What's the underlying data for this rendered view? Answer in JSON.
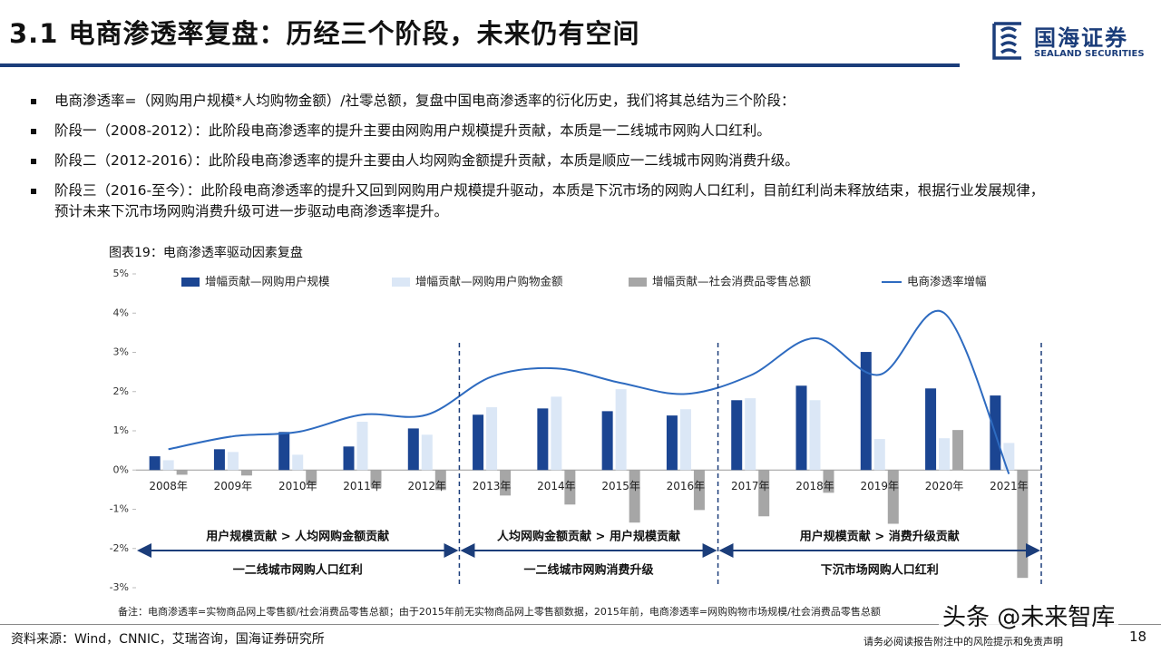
{
  "header": {
    "title": "3.1 电商渗透率复盘：历经三个阶段，未来仍有空间",
    "logo_cn": "国海证券",
    "logo_en": "SEALAND SECURITIES"
  },
  "bullets": [
    "电商渗透率=（网购用户规模*人均购物金额）/社零总额，复盘中国电商渗透率的衍化历史，我们将其总结为三个阶段：",
    "阶段一（2008-2012）：此阶段电商渗透率的提升主要由网购用户规模提升贡献，本质是一二线城市网购人口红利。",
    "阶段二（2012-2016）：此阶段电商渗透率的提升主要由人均网购金额提升贡献，本质是顺应一二线城市网购消费升级。",
    "阶段三（2016-至今）：此阶段电商渗透率的提升又回到网购用户规模提升驱动，本质是下沉市场的网购人口红利，目前红利尚未释放结束，根据行业发展规律，预计未来下沉市场网购消费升级可进一步驱动电商渗透率提升。"
  ],
  "chart_data": {
    "type": "bar",
    "caption": "图表19：电商渗透率驱动因素复盘",
    "categories": [
      "2008年",
      "2009年",
      "2010年",
      "2011年",
      "2012年",
      "2013年",
      "2014年",
      "2015年",
      "2016年",
      "2017年",
      "2018年",
      "2019年",
      "2020年",
      "2021年"
    ],
    "series": [
      {
        "name": "增幅贡献—网购用户规模",
        "type": "bar",
        "color": "#1b4592",
        "values": [
          0.35,
          0.53,
          0.97,
          0.6,
          1.06,
          1.41,
          1.57,
          1.5,
          1.39,
          1.78,
          2.15,
          3.01,
          2.08,
          1.9
        ]
      },
      {
        "name": "增幅贡献—网购用户购物金额",
        "type": "bar",
        "color": "#dbe7f6",
        "values": [
          0.25,
          0.46,
          0.39,
          1.23,
          0.9,
          1.6,
          1.87,
          2.06,
          1.55,
          1.83,
          1.78,
          0.79,
          0.81,
          0.69
        ]
      },
      {
        "name": "增幅贡献—社会消费品零售总额",
        "type": "bar",
        "color": "#a6a6a6",
        "values": [
          -0.12,
          -0.14,
          -0.39,
          -0.44,
          -0.51,
          -0.65,
          -0.88,
          -1.34,
          -1.02,
          -1.18,
          -0.58,
          -1.37,
          1.02,
          -2.75
        ]
      },
      {
        "name": "电商渗透率增幅",
        "type": "line",
        "color": "#2e6bc0",
        "values": [
          0.53,
          0.86,
          0.97,
          1.41,
          1.41,
          2.38,
          2.59,
          2.22,
          1.94,
          2.41,
          3.36,
          2.43,
          4.0,
          -0.1
        ]
      }
    ],
    "ylim": [
      -3,
      5
    ],
    "yticks": [
      {
        "value": -3,
        "label": "-3%"
      },
      {
        "value": -2,
        "label": "-2%"
      },
      {
        "value": -1,
        "label": "-1%"
      },
      {
        "value": 0,
        "label": "0%"
      },
      {
        "value": 1,
        "label": "1%"
      },
      {
        "value": 2,
        "label": "2%"
      },
      {
        "value": 3,
        "label": "3%"
      },
      {
        "value": 4,
        "label": "4%"
      },
      {
        "value": 5,
        "label": "5%"
      }
    ],
    "legend": "top",
    "phases": [
      {
        "top": "用户规模贡献 > 人均网购金额贡献",
        "bottom": "一二线城市网购人口红利"
      },
      {
        "top": "人均网购金额贡献 > 用户规模贡献",
        "bottom": "一二线城市网购消费升级"
      },
      {
        "top": "用户规模贡献 > 消费升级贡献",
        "bottom": "下沉市场网购人口红利"
      }
    ]
  },
  "footer": {
    "note": "备注：电商渗透率=实物商品网上零售额/社会消费品零售总额；由于2015年前无实物商品网上零售额数据，2015年前，电商渗透率=网购购物市场规模/社会消费品零售总额",
    "source": "资料来源：Wind，CNNIC，艾瑞咨询，国海证券研究所",
    "disclaimer": "请务必阅读报告附注中的风险提示和免责声明",
    "page": "18",
    "watermark": "头条 @未来智库"
  }
}
